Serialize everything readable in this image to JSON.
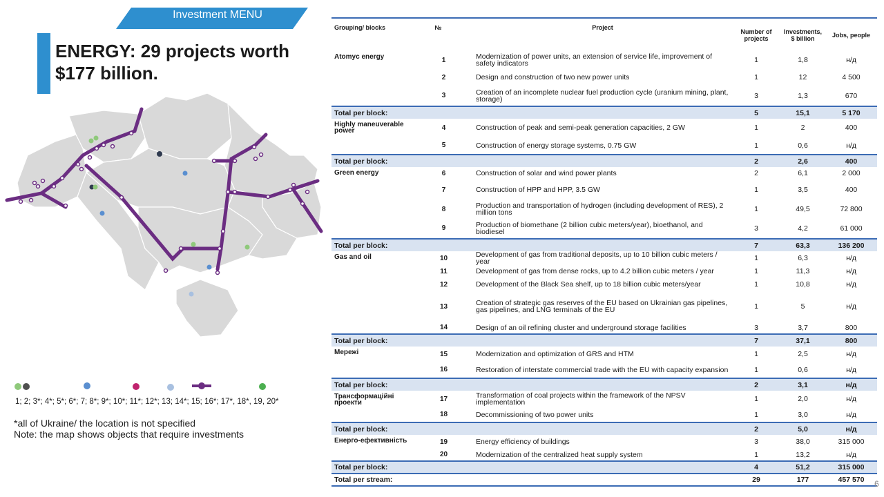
{
  "menu": {
    "label": "Investment MENU"
  },
  "title": "ENERGY: 29 projects worth $177 billion.",
  "legend": {
    "numbers": "1; 2; 3*; 4*; 5*; 6*; 7;  8*; 9*; 10*;  11*; 12*; 13; 14*; 15;  16*;  17*, 18*, 19, 20*",
    "note_line1": "*all of Ukraine/ the location is not specified",
    "note_line2": "Note: the map shows objects that require investments"
  },
  "colors": {
    "accent": "#2e8fcf",
    "pipeline": "#6b2d82",
    "map_fill": "#d9d9d9",
    "total_bg": "#d9e3f1",
    "rule": "#3b6bb4"
  },
  "table": {
    "headers": {
      "group": "Grouping/ blocks",
      "no": "№",
      "project": "Project",
      "count": "Number of projects",
      "invest": "Investments, $ billion",
      "jobs": "Jobs, people"
    },
    "blocks": [
      {
        "group": "Atomyc energy",
        "rows": [
          {
            "no": "1",
            "project": "Modernization of power units, an extension of service life, improvement of safety indicators",
            "count": "1",
            "invest": "1,8",
            "jobs": "н/д"
          },
          {
            "no": "2",
            "project": "Design and construction of two new power units",
            "count": "1",
            "invest": "12",
            "jobs": "4 500"
          },
          {
            "no": "3",
            "project": "Creation of an incomplete nuclear fuel production cycle (uranium mining, plant, storage)",
            "count": "3",
            "invest": "1,3",
            "jobs": "670"
          }
        ],
        "total": {
          "label": "Total per block:",
          "count": "5",
          "invest": "15,1",
          "jobs": "5 170"
        }
      },
      {
        "group": "Highly maneuverable power",
        "rows": [
          {
            "no": "4",
            "project": "Construction of peak and semi-peak generation capacities, 2 GW",
            "count": "1",
            "invest": "2",
            "jobs": "400"
          },
          {
            "no": "5",
            "project": "Construction of energy storage systems, 0.75 GW",
            "count": "1",
            "invest": "0,6",
            "jobs": "н/д"
          }
        ],
        "total": {
          "label": "Total per block:",
          "count": "2",
          "invest": "2,6",
          "jobs": "400"
        }
      },
      {
        "group": "Green energy",
        "rows": [
          {
            "no": "6",
            "project": "Construction of solar and wind power plants",
            "count": "2",
            "invest": "6,1",
            "jobs": "2 000"
          },
          {
            "no": "7",
            "project": "Construction of HPP and HPP, 3.5 GW",
            "count": "1",
            "invest": "3,5",
            "jobs": "400"
          },
          {
            "no": "8",
            "project": "Production and transportation of hydrogen (including development of RES), 2 million tons",
            "count": "1",
            "invest": "49,5",
            "jobs": "72 800"
          },
          {
            "no": "9",
            "project": "Production of biomethane (2 billion cubic meters/year), bioethanol, and biodiesel",
            "count": "3",
            "invest": "4,2",
            "jobs": "61 000"
          }
        ],
        "total": {
          "label": "Total per block:",
          "count": "7",
          "invest": "63,3",
          "jobs": "136 200"
        }
      },
      {
        "group": "Gas and oil",
        "rows": [
          {
            "no": "10",
            "project": "Development of gas from traditional deposits, up to 10 billion cubic meters / year",
            "count": "1",
            "invest": "6,3",
            "jobs": "н/д"
          },
          {
            "no": "11",
            "project": "Development of gas from dense rocks, up to 4.2 billion cubic meters / year",
            "count": "1",
            "invest": "11,3",
            "jobs": "н/д"
          },
          {
            "no": "12",
            "project": "Development of the Black Sea shelf, up to 18 billion cubic meters/year",
            "count": "1",
            "invest": "10,8",
            "jobs": "н/д"
          },
          {
            "no": "13",
            "project": "Creation of strategic gas reserves of the EU based on Ukrainian gas pipelines, gas pipelines, and LNG terminals of the EU",
            "count": "1",
            "invest": "5",
            "jobs": "н/д"
          },
          {
            "no": "14",
            "project": "Design of an oil refining cluster and underground storage facilities",
            "count": "3",
            "invest": "3,7",
            "jobs": "800"
          }
        ],
        "total": {
          "label": "Total per block:",
          "count": "7",
          "invest": "37,1",
          "jobs": "800"
        }
      },
      {
        "group": "Мережі",
        "rows": [
          {
            "no": "15",
            "project": "Modernization and optimization of GRS and HTM",
            "count": "1",
            "invest": "2,5",
            "jobs": "н/д"
          },
          {
            "no": "16",
            "project": "Restoration of interstate commercial trade with the EU with capacity expansion",
            "count": "1",
            "invest": "0,6",
            "jobs": "н/д"
          }
        ],
        "total": {
          "label": "Total per block:",
          "count": "2",
          "invest": "3,1",
          "jobs": "н/д"
        }
      },
      {
        "group": "Трансформаційні проекти",
        "rows": [
          {
            "no": "17",
            "project": "Transformation of coal projects within the framework of the NPSV implementation",
            "count": "1",
            "invest": "2,0",
            "jobs": "н/д"
          },
          {
            "no": "18",
            "project": "Decommissioning of two power units",
            "count": "1",
            "invest": "3,0",
            "jobs": "н/д"
          }
        ],
        "total": {
          "label": "Total per block:",
          "count": "2",
          "invest": "5,0",
          "jobs": "н/д"
        }
      },
      {
        "group": "Енерго-ефективність",
        "rows": [
          {
            "no": "19",
            "project": "Energy efficiency of buildings",
            "count": "3",
            "invest": "38,0",
            "jobs": "315 000"
          },
          {
            "no": "20",
            "project": "Modernization of the centralized heat supply system",
            "count": "1",
            "invest": "13,2",
            "jobs": "н/д"
          }
        ],
        "total": {
          "label": "Total per block:",
          "count": "4",
          "invest": "51,2",
          "jobs": "315 000"
        }
      }
    ],
    "stream": {
      "label": "Total per stream:",
      "count": "29",
      "invest": "177",
      "jobs": "457 570"
    }
  },
  "page_number": "6"
}
